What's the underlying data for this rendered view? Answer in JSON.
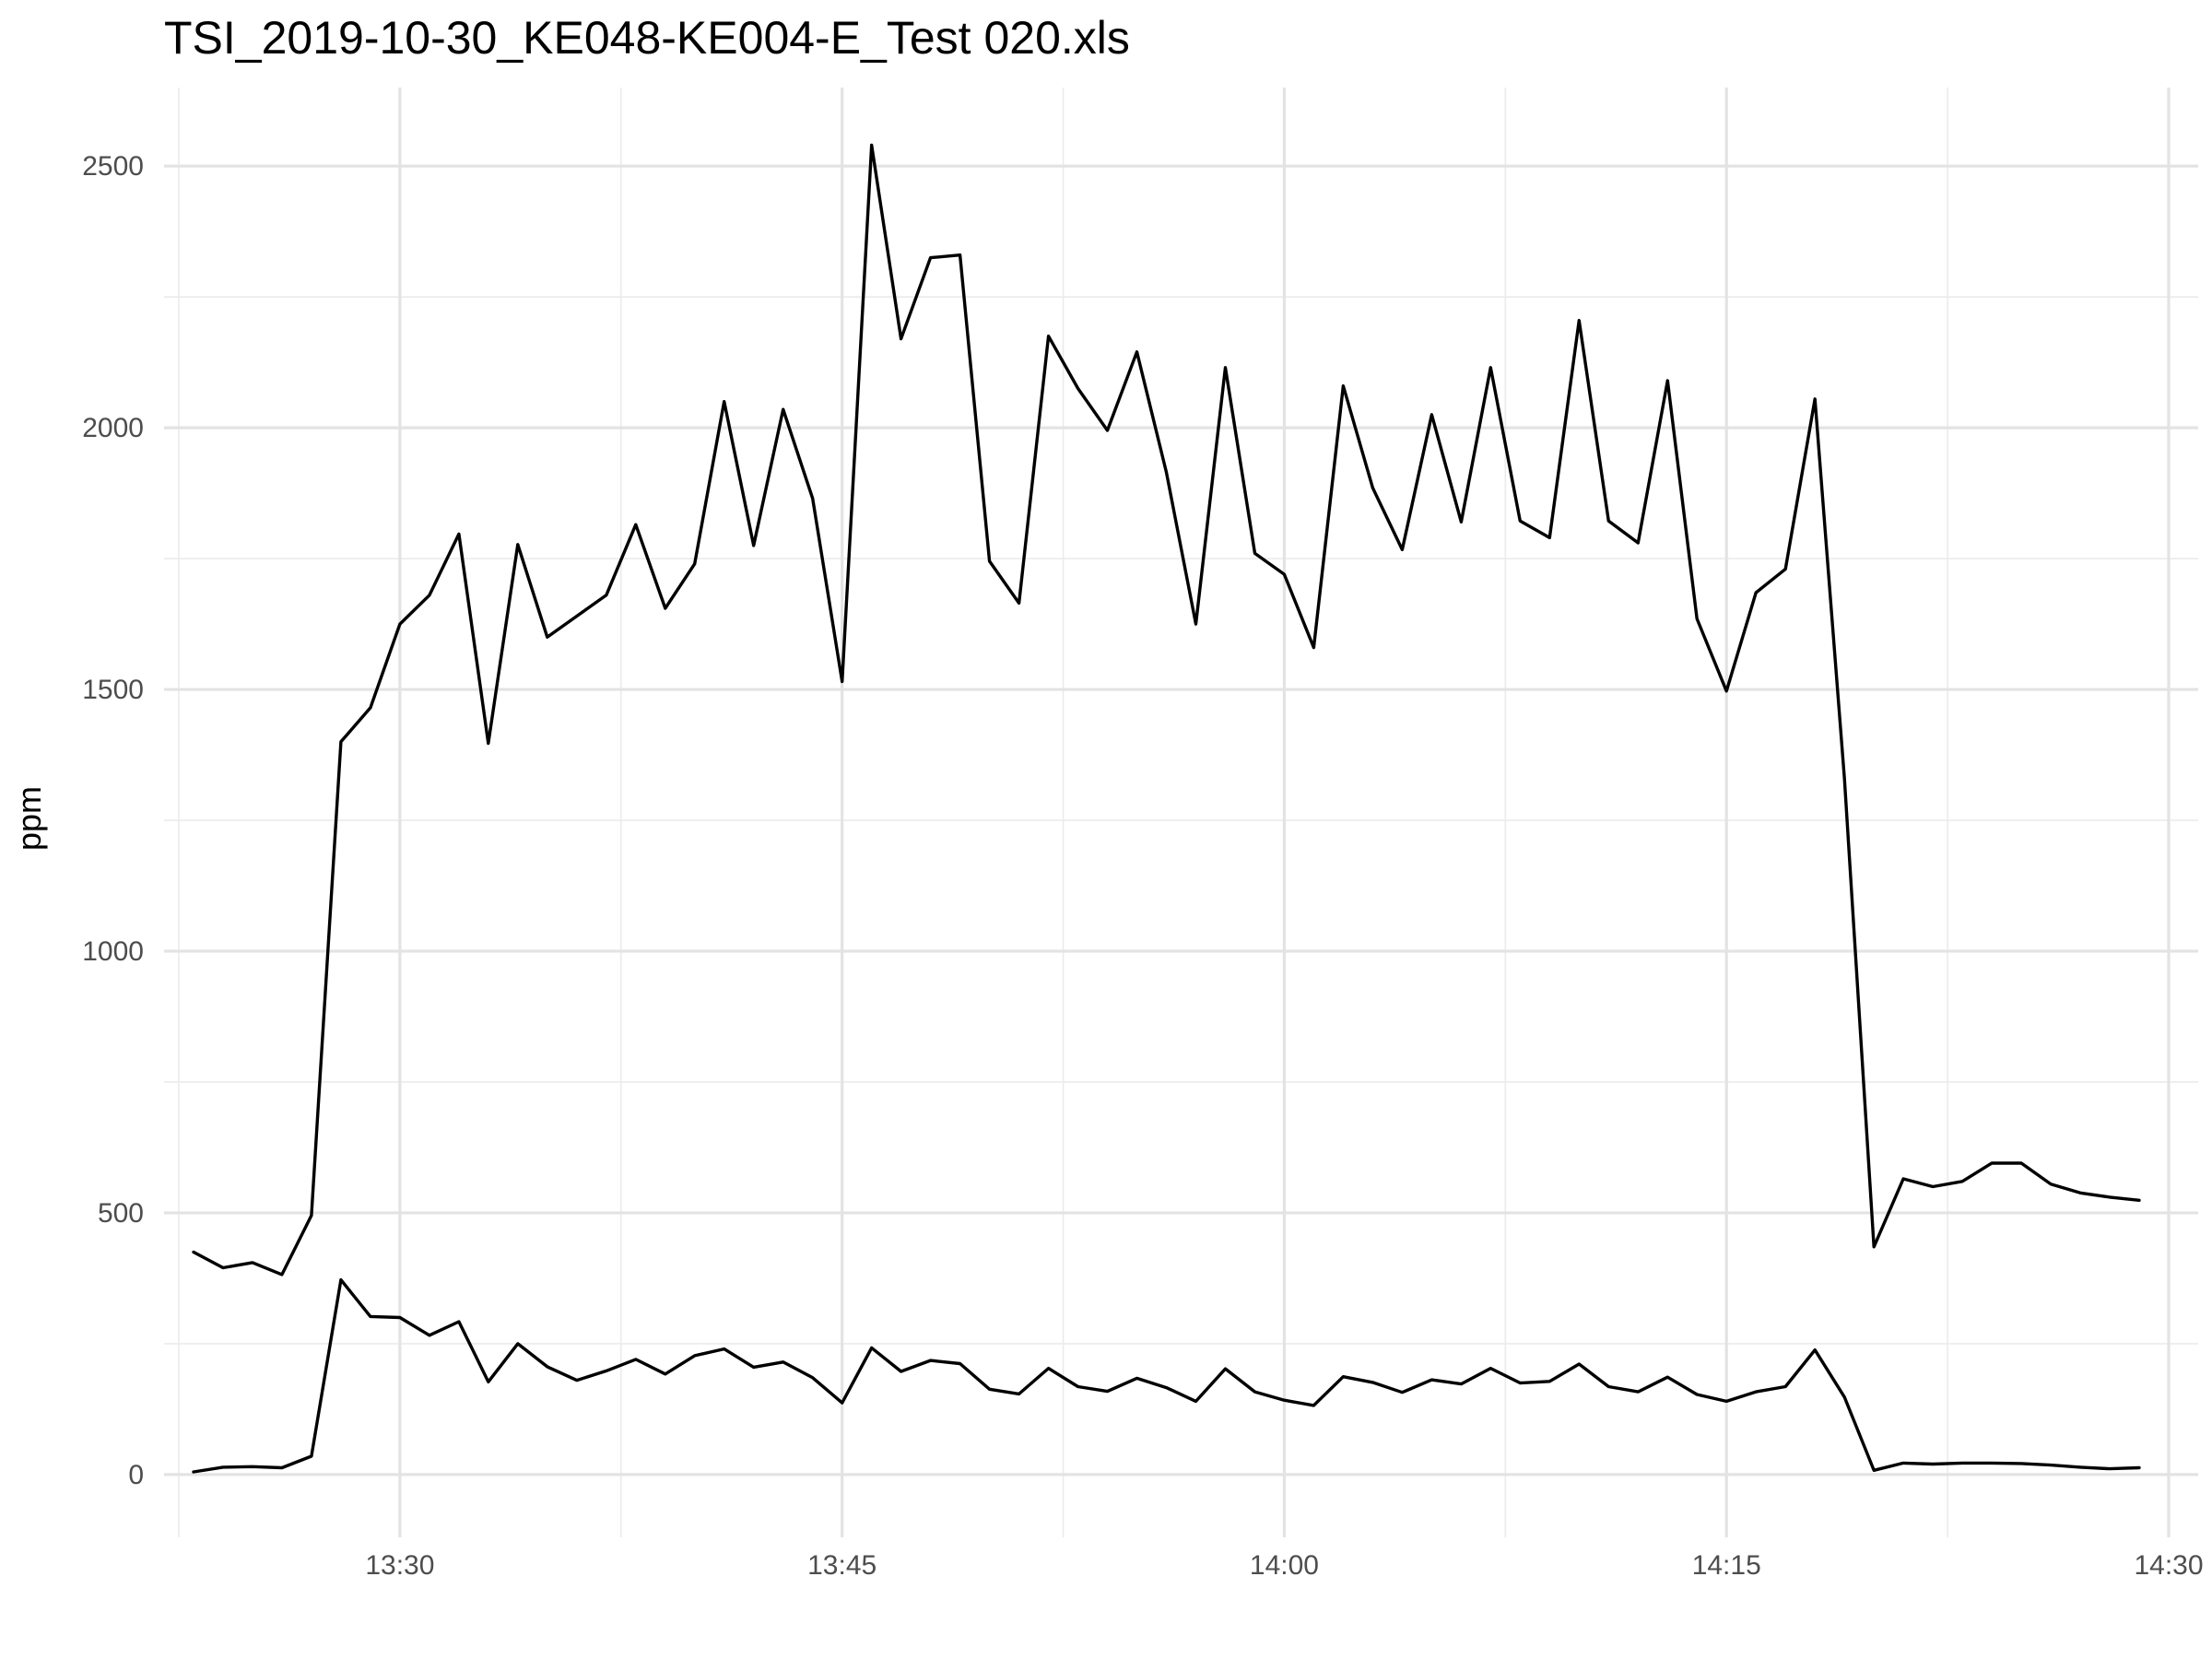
{
  "chart_data": {
    "type": "line",
    "title": "TSI_2019-10-30_KE048-KE004-E_Test 020.xls",
    "xlabel": "",
    "ylabel": "ppm",
    "x_unit": "time (HH:MM)",
    "xlim": [
      "13:22",
      "14:31"
    ],
    "ylim": [
      -120,
      2650
    ],
    "x_ticks": [
      "13:30",
      "13:45",
      "14:00",
      "14:15",
      "14:30"
    ],
    "y_ticks": [
      0,
      500,
      1000,
      1500,
      2000,
      2500
    ],
    "grid": true,
    "x": [
      "13:23",
      "13:24",
      "13:25",
      "13:26",
      "13:27",
      "13:28",
      "13:29",
      "13:30",
      "13:31",
      "13:32",
      "13:33",
      "13:34",
      "13:35",
      "13:36",
      "13:37",
      "13:38",
      "13:39",
      "13:40",
      "13:41",
      "13:42",
      "13:43",
      "13:44",
      "13:45",
      "13:46",
      "13:47",
      "13:48",
      "13:49",
      "13:50",
      "13:51",
      "13:52",
      "13:53",
      "13:54",
      "13:55",
      "13:56",
      "13:57",
      "13:58",
      "13:59",
      "14:00",
      "14:01",
      "14:02",
      "14:03",
      "14:04",
      "14:05",
      "14:06",
      "14:07",
      "14:08",
      "14:09",
      "14:10",
      "14:11",
      "14:12",
      "14:13",
      "14:14",
      "14:15",
      "14:16",
      "14:17",
      "14:18",
      "14:19",
      "14:20",
      "14:21",
      "14:22",
      "14:23",
      "14:24",
      "14:25",
      "14:26",
      "14:27",
      "14:28",
      "14:29"
    ],
    "series": [
      {
        "color": "#000000",
        "values": [
          425,
          395,
          405,
          382,
          495,
          1400,
          1465,
          1625,
          1680,
          1797,
          1397,
          1777,
          1600,
          1640,
          1680,
          1815,
          1655,
          1740,
          2050,
          1775,
          2035,
          1865,
          1515,
          2540,
          2170,
          2325,
          2330,
          1745,
          1665,
          2175,
          2075,
          1995,
          2145,
          1915,
          1625,
          2115,
          1760,
          1720,
          1580,
          2080,
          1885,
          1767,
          2025,
          1820,
          2115,
          1822,
          1790,
          2205,
          1822,
          1780,
          2090,
          1635,
          1497,
          1685,
          1730,
          2055,
          1330,
          435,
          565,
          550,
          560,
          595,
          595,
          555,
          538,
          530,
          524
        ]
      },
      {
        "color": "#000000",
        "values": [
          5,
          14,
          15,
          13,
          35,
          372,
          302,
          300,
          266,
          292,
          177,
          250,
          206,
          180,
          198,
          220,
          192,
          227,
          240,
          205,
          215,
          185,
          137,
          242,
          197,
          218,
          212,
          163,
          154,
          203,
          168,
          159,
          184,
          166,
          140,
          202,
          158,
          142,
          132,
          187,
          176,
          157,
          181,
          173,
          203,
          175,
          178,
          211,
          168,
          158,
          186,
          153,
          140,
          158,
          168,
          238,
          148,
          8,
          22,
          20,
          22,
          22,
          21,
          18,
          14,
          11,
          13
        ]
      }
    ]
  }
}
